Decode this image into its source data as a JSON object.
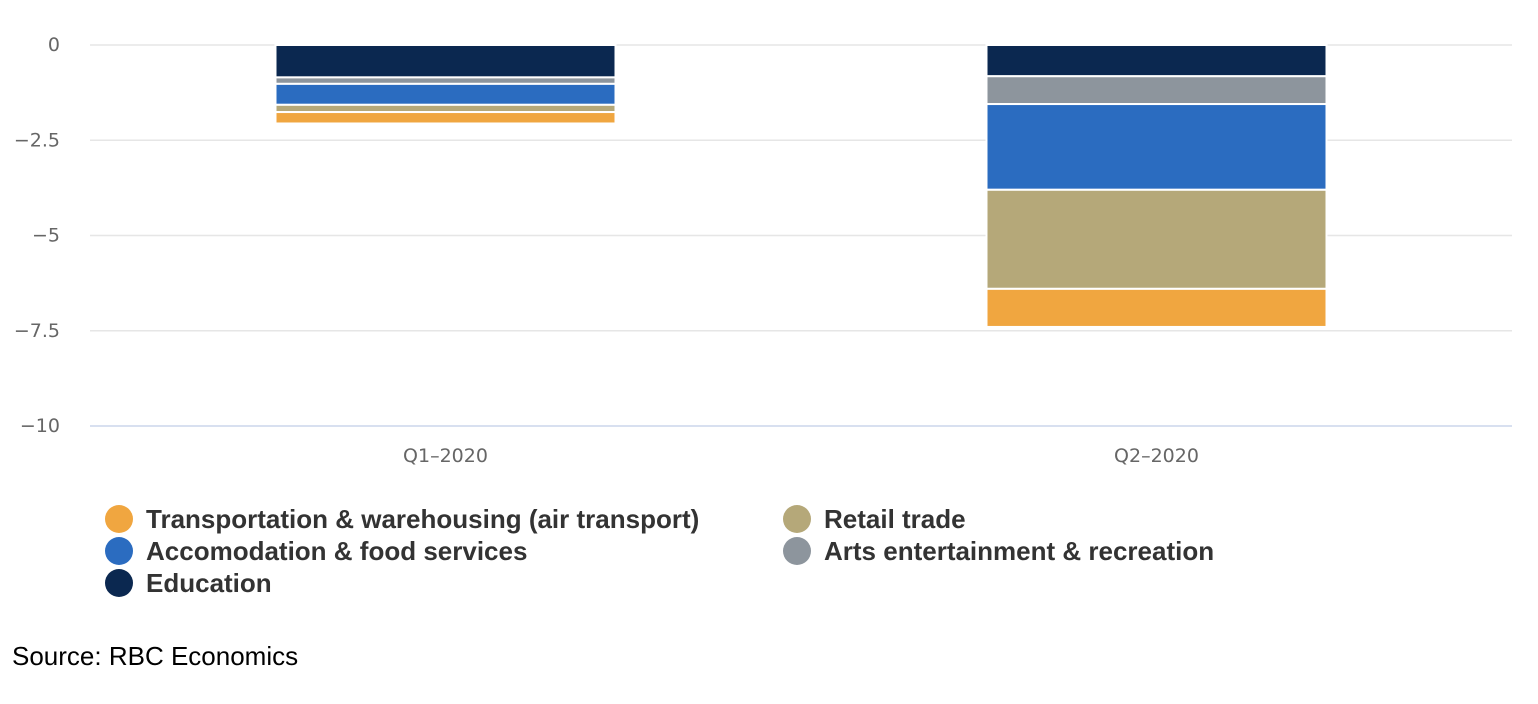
{
  "chart_data": {
    "type": "bar",
    "stacked": true,
    "categories": [
      "Q1–2020",
      "Q2–2020"
    ],
    "ylim": [
      -10,
      0
    ],
    "yticks": [
      0,
      -2.5,
      -5,
      -7.5,
      -10
    ],
    "ytick_labels": [
      "0",
      "−2.5",
      "−5",
      "−7.5",
      "−10"
    ],
    "grid": true,
    "legend_position": "bottom-left",
    "series": [
      {
        "name": "Education",
        "color": "#0b2850",
        "values": [
          -0.85,
          -0.82
        ]
      },
      {
        "name": "Arts entertainment & recreation",
        "color": "#8d959d",
        "values": [
          -0.17,
          -0.73
        ]
      },
      {
        "name": "Accomodation & food services",
        "color": "#2b6cc0",
        "values": [
          -0.55,
          -2.25
        ]
      },
      {
        "name": "Retail trade",
        "color": "#b5a879",
        "values": [
          -0.19,
          -2.6
        ]
      },
      {
        "name": "Transportation & warehousing (air transport)",
        "color": "#f0a640",
        "values": [
          -0.3,
          -1.0
        ]
      }
    ]
  },
  "legend": {
    "items": [
      {
        "label": "Transportation & warehousing (air transport)",
        "color": "#f0a640"
      },
      {
        "label": "Retail trade",
        "color": "#b5a879"
      },
      {
        "label": "Accomodation & food services",
        "color": "#2b6cc0"
      },
      {
        "label": "Arts entertainment & recreation",
        "color": "#8d959d"
      },
      {
        "label": "Education",
        "color": "#0b2850"
      }
    ]
  },
  "source": "Source: RBC Economics"
}
